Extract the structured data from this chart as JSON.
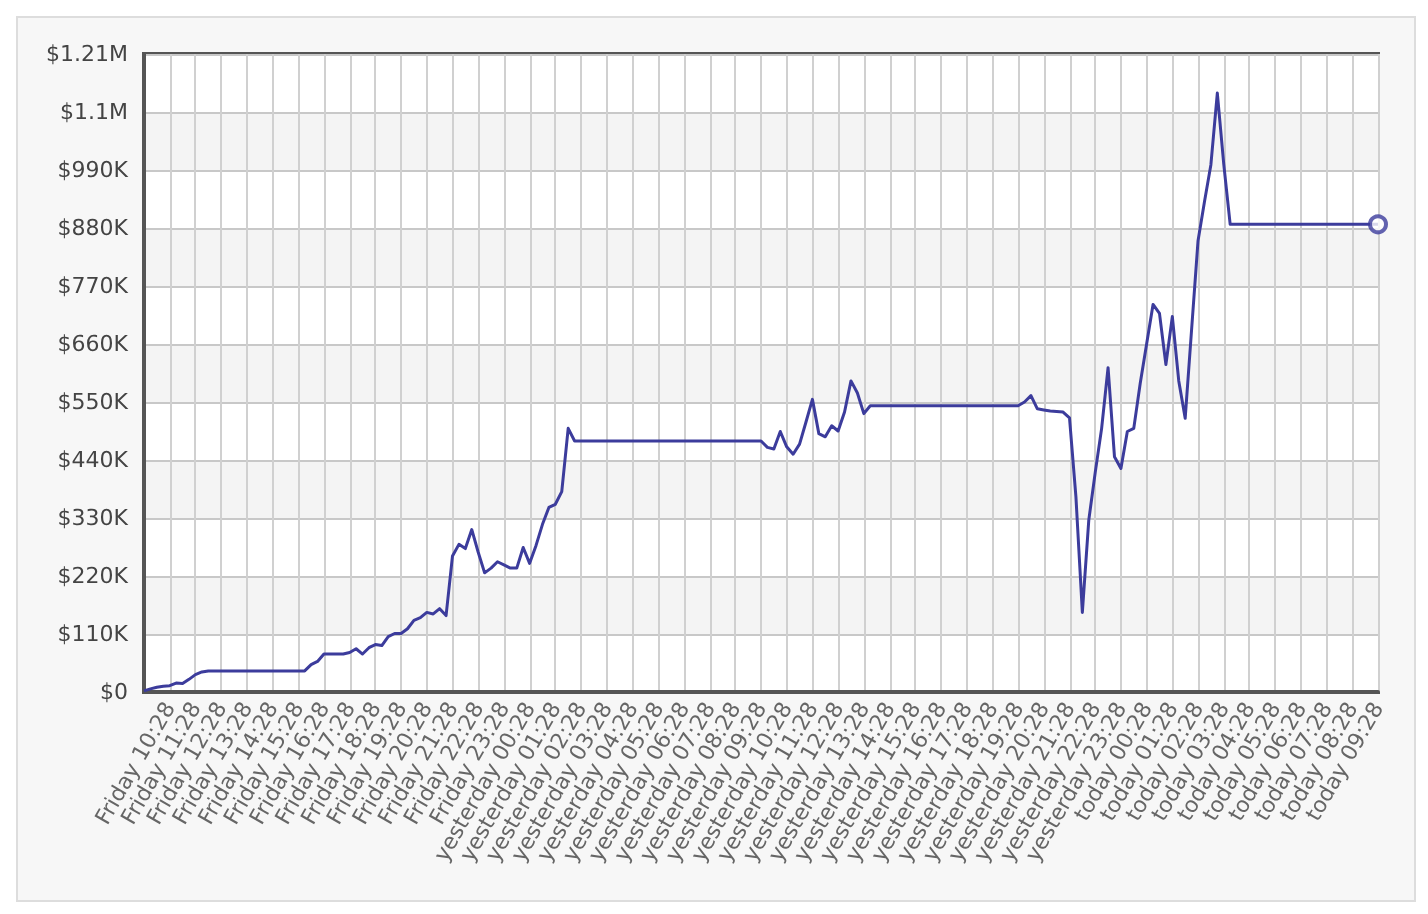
{
  "chart_data": {
    "type": "line",
    "categories": [
      null,
      null,
      null,
      null,
      "Friday 10:28",
      null,
      null,
      null,
      "Friday 11:28",
      null,
      null,
      null,
      "Friday 12:28",
      null,
      null,
      null,
      "Friday 13:28",
      null,
      null,
      null,
      "Friday 14:28",
      null,
      null,
      null,
      "Friday 15:28",
      null,
      null,
      null,
      "Friday 16:28",
      null,
      null,
      null,
      "Friday 17:28",
      null,
      null,
      null,
      "Friday 18:28",
      null,
      null,
      null,
      "Friday 19:28",
      null,
      null,
      null,
      "Friday 20:28",
      null,
      null,
      null,
      "Friday 21:28",
      null,
      null,
      null,
      "Friday 22:28",
      null,
      null,
      null,
      "Friday 23:28",
      null,
      null,
      null,
      "yesterday 00:28",
      null,
      null,
      null,
      "yesterday 01:28",
      null,
      null,
      null,
      "yesterday 02:28",
      null,
      null,
      null,
      "yesterday 03:28",
      null,
      null,
      null,
      "yesterday 04:28",
      null,
      null,
      null,
      "yesterday 05:28",
      null,
      null,
      null,
      "yesterday 06:28",
      null,
      null,
      null,
      "yesterday 07:28",
      null,
      null,
      null,
      "yesterday 08:28",
      null,
      null,
      null,
      "yesterday 09:28",
      null,
      null,
      null,
      "yesterday 10:28",
      null,
      null,
      null,
      "yesterday 11:28",
      null,
      null,
      null,
      "yesterday 12:28",
      null,
      null,
      null,
      "yesterday 13:28",
      null,
      null,
      null,
      "yesterday 14:28",
      null,
      null,
      null,
      "yesterday 15:28",
      null,
      null,
      null,
      "yesterday 16:28",
      null,
      null,
      null,
      "yesterday 17:28",
      null,
      null,
      null,
      "yesterday 18:28",
      null,
      null,
      null,
      "yesterday 19:28",
      null,
      null,
      null,
      "yesterday 20:28",
      null,
      null,
      null,
      "yesterday 21:28",
      null,
      null,
      null,
      "yesterday 22:28",
      null,
      null,
      null,
      "yesterday 23:28",
      null,
      null,
      null,
      "today 00:28",
      null,
      null,
      null,
      "today 01:28",
      null,
      null,
      null,
      "today 02:28",
      null,
      null,
      null,
      "today 03:28",
      null,
      null,
      null,
      "today 04:28",
      null,
      null,
      null,
      "today 05:28",
      null,
      null,
      null,
      "today 06:28",
      null,
      null,
      null,
      "today 07:28",
      null,
      null,
      null,
      "today 08:28",
      null,
      null,
      null,
      "today 09:28"
    ],
    "series": [
      {
        "color": "#3c3c9c",
        "values": [
          2000,
          6000,
          9000,
          11000,
          12000,
          17000,
          16000,
          24000,
          33000,
          38000,
          40000,
          40000,
          40000,
          40000,
          40000,
          40000,
          40000,
          40000,
          40000,
          40000,
          40000,
          40000,
          40000,
          40000,
          40000,
          40000,
          52000,
          58000,
          72000,
          72000,
          72000,
          72000,
          75000,
          82000,
          72000,
          84000,
          90000,
          88000,
          105000,
          111000,
          111000,
          120000,
          136000,
          141000,
          151000,
          148000,
          158000,
          145000,
          258000,
          280000,
          272000,
          308000,
          265000,
          226000,
          235000,
          247000,
          241000,
          235000,
          235000,
          274000,
          244000,
          278000,
          318000,
          350000,
          356000,
          380000,
          500000,
          476000,
          476000,
          476000,
          476000,
          476000,
          476000,
          476000,
          476000,
          476000,
          476000,
          476000,
          476000,
          476000,
          476000,
          476000,
          476000,
          476000,
          476000,
          476000,
          476000,
          476000,
          476000,
          476000,
          476000,
          476000,
          476000,
          476000,
          476000,
          476000,
          476000,
          464000,
          461000,
          494000,
          465000,
          451000,
          470000,
          512000,
          555000,
          490000,
          484000,
          505000,
          495000,
          531000,
          590000,
          567000,
          528000,
          543000,
          543000,
          543000,
          543000,
          543000,
          543000,
          543000,
          543000,
          543000,
          543000,
          543000,
          543000,
          543000,
          543000,
          543000,
          543000,
          543000,
          543000,
          543000,
          543000,
          543000,
          543000,
          543000,
          543000,
          550000,
          562000,
          537000,
          535000,
          533000,
          532000,
          531000,
          520000,
          370000,
          151000,
          326000,
          416000,
          500000,
          615000,
          446000,
          424000,
          494000,
          500000,
          585000,
          660000,
          735000,
          718000,
          621000,
          712000,
          590000,
          519000,
          688000,
          856000,
          930000,
          1000000,
          1136000,
          1001000,
          887000,
          887000,
          887000,
          887000,
          887000,
          887000,
          887000,
          887000,
          887000,
          887000,
          887000,
          887000,
          887000,
          887000,
          887000,
          887000,
          887000,
          887000,
          887000,
          887000,
          887000,
          887000,
          887000,
          887000
        ]
      },
      {
        "type": "scatter",
        "color": "#3c3c9c",
        "marker": "circle",
        "x": [
          "today 09:28"
        ],
        "values": [
          887000
        ]
      }
    ],
    "marker": "none",
    "ylim": [
      0,
      1210000
    ],
    "yticks": [
      {
        "value": 0,
        "label": "$0"
      },
      {
        "value": 110000,
        "label": "$110K"
      },
      {
        "value": 220000,
        "label": "$220K"
      },
      {
        "value": 330000,
        "label": "$330K"
      },
      {
        "value": 440000,
        "label": "$440K"
      },
      {
        "value": 550000,
        "label": "$550K"
      },
      {
        "value": 660000,
        "label": "$660K"
      },
      {
        "value": 770000,
        "label": "$770K"
      },
      {
        "value": 880000,
        "label": "$880K"
      },
      {
        "value": 990000,
        "label": "$990K"
      },
      {
        "value": 1100000,
        "label": "$1.1M"
      },
      {
        "value": 1210000,
        "label": "$1.21M"
      }
    ],
    "grid": true
  }
}
